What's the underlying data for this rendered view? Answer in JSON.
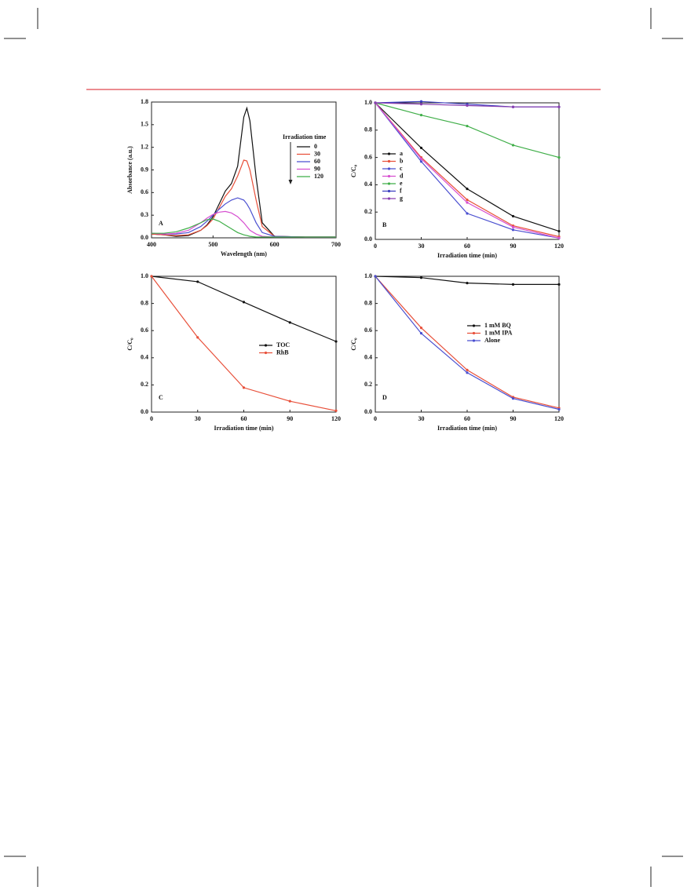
{
  "chart_data": [
    {
      "type": "line",
      "panel_label": "A",
      "xlabel": "Wavelength (nm)",
      "ylabel": "Absorbance (a.u.)",
      "legend_title": "Irradiation time",
      "legend": "upper right",
      "markers": false,
      "x": [
        400,
        420,
        440,
        460,
        480,
        490,
        500,
        510,
        520,
        530,
        540,
        550,
        555,
        560,
        570,
        580,
        600,
        650,
        700
      ],
      "xlim": [
        400,
        700
      ],
      "xticks": [
        400,
        500,
        600,
        700
      ],
      "ylim": [
        0,
        1.8
      ],
      "yticks": [
        {
          "value": 0,
          "label": "0.0"
        },
        0.3,
        0.6,
        0.9,
        1.2,
        1.5,
        1.8
      ],
      "series": [
        {
          "name": "0",
          "color": "#111111",
          "values": [
            0.05,
            0.04,
            0.02,
            0.03,
            0.1,
            0.17,
            0.28,
            0.45,
            0.62,
            0.72,
            0.95,
            1.6,
            1.72,
            1.55,
            0.8,
            0.2,
            0.02,
            0.01,
            0.01
          ]
        },
        {
          "name": "30",
          "color": "#e8503a",
          "values": [
            0.05,
            0.04,
            0.03,
            0.04,
            0.1,
            0.16,
            0.25,
            0.4,
            0.55,
            0.65,
            0.82,
            1.03,
            1.02,
            0.9,
            0.5,
            0.15,
            0.02,
            0.01,
            0.01
          ]
        },
        {
          "name": "60",
          "color": "#4a4fd0",
          "values": [
            0.06,
            0.05,
            0.05,
            0.07,
            0.15,
            0.22,
            0.3,
            0.38,
            0.45,
            0.5,
            0.53,
            0.5,
            0.45,
            0.38,
            0.2,
            0.07,
            0.02,
            0.01,
            0.01
          ]
        },
        {
          "name": "90",
          "color": "#d64fd0",
          "values": [
            0.06,
            0.05,
            0.06,
            0.1,
            0.2,
            0.26,
            0.31,
            0.34,
            0.35,
            0.33,
            0.28,
            0.2,
            0.15,
            0.1,
            0.05,
            0.02,
            0.01,
            0.01,
            0.01
          ]
        },
        {
          "name": "120",
          "color": "#3fae48",
          "values": [
            0.06,
            0.06,
            0.08,
            0.13,
            0.2,
            0.24,
            0.25,
            0.22,
            0.17,
            0.12,
            0.07,
            0.04,
            0.03,
            0.02,
            0.01,
            0.01,
            0.01,
            0.01,
            0.01
          ]
        }
      ]
    },
    {
      "type": "line",
      "panel_label": "B",
      "xlabel": "Irradiation time (min)",
      "ylabel": "C/C₀",
      "legend": "lower left",
      "markers": true,
      "x": [
        0,
        30,
        60,
        90,
        120
      ],
      "xlim": [
        0,
        120
      ],
      "xticks": [
        0,
        30,
        60,
        90,
        120
      ],
      "ylim": [
        0,
        1
      ],
      "yticks": [
        {
          "value": 0,
          "label": "0.0"
        },
        0.2,
        0.4,
        0.6,
        0.8,
        {
          "value": 1,
          "label": "1.0"
        }
      ],
      "series": [
        {
          "name": "a",
          "color": "#111111",
          "values": [
            1,
            0.67,
            0.37,
            0.17,
            0.06
          ]
        },
        {
          "name": "b",
          "color": "#e8503a",
          "values": [
            1,
            0.6,
            0.29,
            0.1,
            0.02
          ]
        },
        {
          "name": "c",
          "color": "#4a4fd0",
          "values": [
            1,
            0.57,
            0.19,
            0.07,
            0.01
          ]
        },
        {
          "name": "d",
          "color": "#d64fd0",
          "values": [
            1,
            0.59,
            0.27,
            0.09,
            0.01
          ]
        },
        {
          "name": "e",
          "color": "#3fae48",
          "values": [
            1,
            0.91,
            0.83,
            0.69,
            0.6
          ]
        },
        {
          "name": "f",
          "color": "#3b3fc0",
          "values": [
            1,
            1.01,
            0.99,
            0.97,
            0.97
          ]
        },
        {
          "name": "g",
          "color": "#8a3fb0",
          "values": [
            1,
            0.99,
            0.98,
            0.97,
            0.97
          ]
        }
      ]
    },
    {
      "type": "line",
      "panel_label": "C",
      "xlabel": "Irradiation time (min)",
      "ylabel": "C/C₀",
      "legend": "center right",
      "markers": true,
      "x": [
        0,
        30,
        60,
        90,
        120
      ],
      "xlim": [
        0,
        120
      ],
      "xticks": [
        0,
        30,
        60,
        90,
        120
      ],
      "ylim": [
        0,
        1
      ],
      "yticks": [
        {
          "value": 0,
          "label": "0.0"
        },
        0.2,
        0.4,
        0.6,
        0.8,
        {
          "value": 1,
          "label": "1.0"
        }
      ],
      "series": [
        {
          "name": "TOC",
          "color": "#111111",
          "values": [
            1,
            0.96,
            0.81,
            0.66,
            0.52
          ]
        },
        {
          "name": "RhB",
          "color": "#e8503a",
          "values": [
            1,
            0.55,
            0.18,
            0.08,
            0.01
          ]
        }
      ]
    },
    {
      "type": "line",
      "panel_label": "D",
      "xlabel": "Irradiation time (min)",
      "ylabel": "C/C₀",
      "legend": "center right",
      "markers": true,
      "x": [
        0,
        30,
        60,
        90,
        120
      ],
      "xlim": [
        0,
        120
      ],
      "xticks": [
        0,
        30,
        60,
        90,
        120
      ],
      "ylim": [
        0,
        1
      ],
      "yticks": [
        {
          "value": 0,
          "label": "0.0"
        },
        0.2,
        0.4,
        0.6,
        0.8,
        {
          "value": 1,
          "label": "1.0"
        }
      ],
      "series": [
        {
          "name": "1 mM BQ",
          "color": "#111111",
          "values": [
            1,
            0.99,
            0.95,
            0.94,
            0.94
          ]
        },
        {
          "name": "1 mM IPA",
          "color": "#e8503a",
          "values": [
            1,
            0.62,
            0.31,
            0.11,
            0.03
          ]
        },
        {
          "name": "Alone",
          "color": "#4a4fd0",
          "values": [
            1,
            0.58,
            0.29,
            0.1,
            0.02
          ]
        }
      ]
    }
  ]
}
